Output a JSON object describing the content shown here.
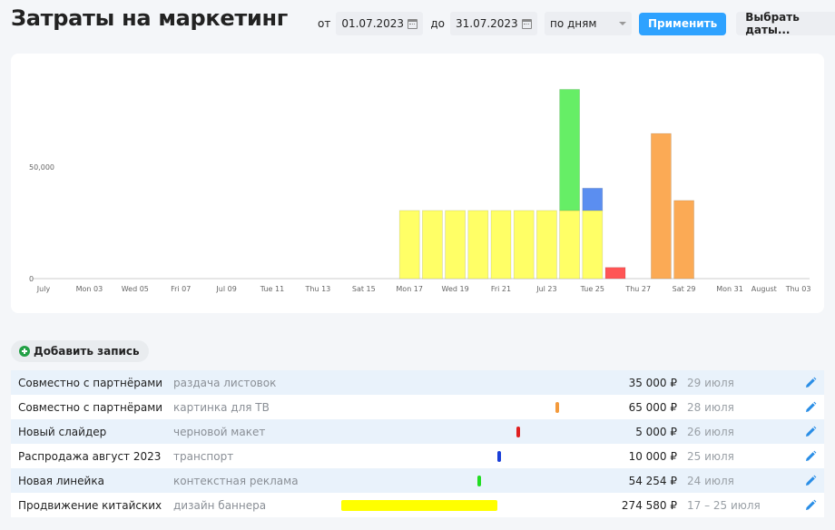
{
  "header": {
    "title": "Затраты на маркетинг",
    "from_label": "от",
    "from_date": "01.07.2023",
    "to_label": "до",
    "to_date": "31.07.2023",
    "granularity": "по дням",
    "apply_label": "Применить",
    "choose_dates_label": "Выбрать даты..."
  },
  "colors": {
    "apply_button": "#2ea2ff",
    "edit_icon": "#2a8ee6",
    "row_alt": "#e9f2fb"
  },
  "chart_data": {
    "type": "bar",
    "stacked": true,
    "y_ticks": [
      "0",
      "50,000"
    ],
    "ylim": [
      0,
      90000
    ],
    "x_tick_labels": [
      "July",
      "Mon 03",
      "Wed 05",
      "Fri 07",
      "Jul 09",
      "Tue 11",
      "Thu 13",
      "Sat 15",
      "Mon 17",
      "Wed 19",
      "Fri 21",
      "Jul 23",
      "Tue 25",
      "Thu 27",
      "Sat 29",
      "Mon 31",
      "August",
      "Thu 03"
    ],
    "categories": [
      "Jul 17",
      "Jul 18",
      "Jul 19",
      "Jul 20",
      "Jul 21",
      "Jul 22",
      "Jul 23",
      "Jul 24",
      "Jul 25",
      "Jul 26",
      "Jul 28",
      "Jul 29"
    ],
    "series": [
      {
        "color": "#ffff66",
        "values": [
          30509,
          30509,
          30509,
          30509,
          30509,
          30509,
          30509,
          30509,
          30509,
          0,
          0,
          0
        ]
      },
      {
        "color": "#66ee66",
        "values": [
          0,
          0,
          0,
          0,
          0,
          0,
          0,
          54254,
          0,
          0,
          0,
          0
        ]
      },
      {
        "color": "#5b8ef0",
        "values": [
          0,
          0,
          0,
          0,
          0,
          0,
          0,
          0,
          10000,
          0,
          0,
          0
        ]
      },
      {
        "color": "#ff5555",
        "values": [
          0,
          0,
          0,
          0,
          0,
          0,
          0,
          0,
          0,
          5000,
          0,
          0
        ]
      },
      {
        "color": "#fbaa55",
        "values": [
          0,
          0,
          0,
          0,
          0,
          0,
          0,
          0,
          0,
          0,
          65000,
          35000
        ]
      }
    ],
    "grid": false,
    "legend": "none"
  },
  "add_label": "Добавить запись",
  "rows": [
    {
      "name": "Совместно с партнёрами",
      "desc": "раздача листовок",
      "amount": "35 000 ₽",
      "date": "29 июля",
      "bar_color": "",
      "bar_day_from": 0,
      "bar_day_to": 0
    },
    {
      "name": "Совместно с партнёрами",
      "desc": "картинка для ТВ",
      "amount": "65 000 ₽",
      "date": "28 июля",
      "bar_color": "#f39a3c",
      "bar_day_from": 28,
      "bar_day_to": 28
    },
    {
      "name": "Новый слайдер",
      "desc": "черновой макет",
      "amount": "5 000 ₽",
      "date": "26 июля",
      "bar_color": "#e02020",
      "bar_day_from": 26,
      "bar_day_to": 26
    },
    {
      "name": "Распродажа август 2023",
      "desc": "транспорт",
      "amount": "10 000 ₽",
      "date": "25 июля",
      "bar_color": "#1a3fd8",
      "bar_day_from": 25,
      "bar_day_to": 25
    },
    {
      "name": "Новая линейка",
      "desc": "контекстная реклама",
      "amount": "54 254 ₽",
      "date": "24 июля",
      "bar_color": "#22dd22",
      "bar_day_from": 24,
      "bar_day_to": 24
    },
    {
      "name": "Продвижение китайских товаров",
      "desc": "дизайн баннера",
      "amount": "274 580 ₽",
      "date": "17 – 25 июля",
      "bar_color": "#ffff00",
      "bar_day_from": 17,
      "bar_day_to": 25
    }
  ]
}
